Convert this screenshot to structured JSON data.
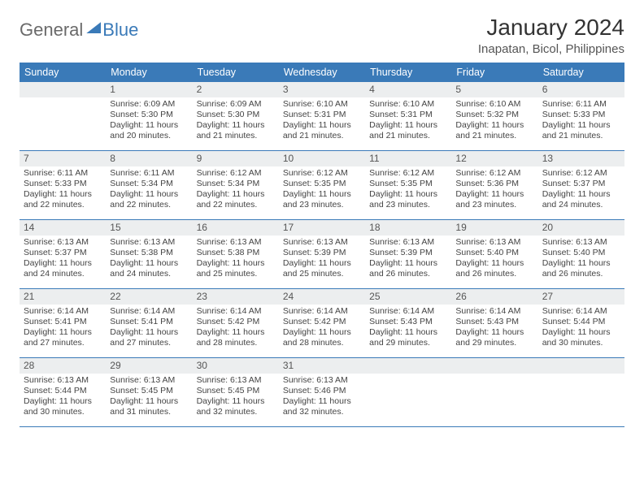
{
  "brand": {
    "part1": "General",
    "part2": "Blue"
  },
  "title": "January 2024",
  "location": "Inapatan, Bicol, Philippines",
  "colors": {
    "header_bg": "#3a7ab8",
    "header_text": "#ffffff",
    "daynum_bg": "#eceeef",
    "body_bg": "#ffffff",
    "text": "#333333",
    "secondary_text": "#555555"
  },
  "day_headers": [
    "Sunday",
    "Monday",
    "Tuesday",
    "Wednesday",
    "Thursday",
    "Friday",
    "Saturday"
  ],
  "layout": {
    "rows": 6,
    "cols": 7,
    "row_separator_color": "#3a7ab8"
  },
  "weeks": [
    [
      null,
      {
        "n": "1",
        "sunrise": "Sunrise: 6:09 AM",
        "sunset": "Sunset: 5:30 PM",
        "daylight": "Daylight: 11 hours and 20 minutes."
      },
      {
        "n": "2",
        "sunrise": "Sunrise: 6:09 AM",
        "sunset": "Sunset: 5:30 PM",
        "daylight": "Daylight: 11 hours and 21 minutes."
      },
      {
        "n": "3",
        "sunrise": "Sunrise: 6:10 AM",
        "sunset": "Sunset: 5:31 PM",
        "daylight": "Daylight: 11 hours and 21 minutes."
      },
      {
        "n": "4",
        "sunrise": "Sunrise: 6:10 AM",
        "sunset": "Sunset: 5:31 PM",
        "daylight": "Daylight: 11 hours and 21 minutes."
      },
      {
        "n": "5",
        "sunrise": "Sunrise: 6:10 AM",
        "sunset": "Sunset: 5:32 PM",
        "daylight": "Daylight: 11 hours and 21 minutes."
      },
      {
        "n": "6",
        "sunrise": "Sunrise: 6:11 AM",
        "sunset": "Sunset: 5:33 PM",
        "daylight": "Daylight: 11 hours and 21 minutes."
      }
    ],
    [
      {
        "n": "7",
        "sunrise": "Sunrise: 6:11 AM",
        "sunset": "Sunset: 5:33 PM",
        "daylight": "Daylight: 11 hours and 22 minutes."
      },
      {
        "n": "8",
        "sunrise": "Sunrise: 6:11 AM",
        "sunset": "Sunset: 5:34 PM",
        "daylight": "Daylight: 11 hours and 22 minutes."
      },
      {
        "n": "9",
        "sunrise": "Sunrise: 6:12 AM",
        "sunset": "Sunset: 5:34 PM",
        "daylight": "Daylight: 11 hours and 22 minutes."
      },
      {
        "n": "10",
        "sunrise": "Sunrise: 6:12 AM",
        "sunset": "Sunset: 5:35 PM",
        "daylight": "Daylight: 11 hours and 23 minutes."
      },
      {
        "n": "11",
        "sunrise": "Sunrise: 6:12 AM",
        "sunset": "Sunset: 5:35 PM",
        "daylight": "Daylight: 11 hours and 23 minutes."
      },
      {
        "n": "12",
        "sunrise": "Sunrise: 6:12 AM",
        "sunset": "Sunset: 5:36 PM",
        "daylight": "Daylight: 11 hours and 23 minutes."
      },
      {
        "n": "13",
        "sunrise": "Sunrise: 6:12 AM",
        "sunset": "Sunset: 5:37 PM",
        "daylight": "Daylight: 11 hours and 24 minutes."
      }
    ],
    [
      {
        "n": "14",
        "sunrise": "Sunrise: 6:13 AM",
        "sunset": "Sunset: 5:37 PM",
        "daylight": "Daylight: 11 hours and 24 minutes."
      },
      {
        "n": "15",
        "sunrise": "Sunrise: 6:13 AM",
        "sunset": "Sunset: 5:38 PM",
        "daylight": "Daylight: 11 hours and 24 minutes."
      },
      {
        "n": "16",
        "sunrise": "Sunrise: 6:13 AM",
        "sunset": "Sunset: 5:38 PM",
        "daylight": "Daylight: 11 hours and 25 minutes."
      },
      {
        "n": "17",
        "sunrise": "Sunrise: 6:13 AM",
        "sunset": "Sunset: 5:39 PM",
        "daylight": "Daylight: 11 hours and 25 minutes."
      },
      {
        "n": "18",
        "sunrise": "Sunrise: 6:13 AM",
        "sunset": "Sunset: 5:39 PM",
        "daylight": "Daylight: 11 hours and 26 minutes."
      },
      {
        "n": "19",
        "sunrise": "Sunrise: 6:13 AM",
        "sunset": "Sunset: 5:40 PM",
        "daylight": "Daylight: 11 hours and 26 minutes."
      },
      {
        "n": "20",
        "sunrise": "Sunrise: 6:13 AM",
        "sunset": "Sunset: 5:40 PM",
        "daylight": "Daylight: 11 hours and 26 minutes."
      }
    ],
    [
      {
        "n": "21",
        "sunrise": "Sunrise: 6:14 AM",
        "sunset": "Sunset: 5:41 PM",
        "daylight": "Daylight: 11 hours and 27 minutes."
      },
      {
        "n": "22",
        "sunrise": "Sunrise: 6:14 AM",
        "sunset": "Sunset: 5:41 PM",
        "daylight": "Daylight: 11 hours and 27 minutes."
      },
      {
        "n": "23",
        "sunrise": "Sunrise: 6:14 AM",
        "sunset": "Sunset: 5:42 PM",
        "daylight": "Daylight: 11 hours and 28 minutes."
      },
      {
        "n": "24",
        "sunrise": "Sunrise: 6:14 AM",
        "sunset": "Sunset: 5:42 PM",
        "daylight": "Daylight: 11 hours and 28 minutes."
      },
      {
        "n": "25",
        "sunrise": "Sunrise: 6:14 AM",
        "sunset": "Sunset: 5:43 PM",
        "daylight": "Daylight: 11 hours and 29 minutes."
      },
      {
        "n": "26",
        "sunrise": "Sunrise: 6:14 AM",
        "sunset": "Sunset: 5:43 PM",
        "daylight": "Daylight: 11 hours and 29 minutes."
      },
      {
        "n": "27",
        "sunrise": "Sunrise: 6:14 AM",
        "sunset": "Sunset: 5:44 PM",
        "daylight": "Daylight: 11 hours and 30 minutes."
      }
    ],
    [
      {
        "n": "28",
        "sunrise": "Sunrise: 6:13 AM",
        "sunset": "Sunset: 5:44 PM",
        "daylight": "Daylight: 11 hours and 30 minutes."
      },
      {
        "n": "29",
        "sunrise": "Sunrise: 6:13 AM",
        "sunset": "Sunset: 5:45 PM",
        "daylight": "Daylight: 11 hours and 31 minutes."
      },
      {
        "n": "30",
        "sunrise": "Sunrise: 6:13 AM",
        "sunset": "Sunset: 5:45 PM",
        "daylight": "Daylight: 11 hours and 32 minutes."
      },
      {
        "n": "31",
        "sunrise": "Sunrise: 6:13 AM",
        "sunset": "Sunset: 5:46 PM",
        "daylight": "Daylight: 11 hours and 32 minutes."
      },
      null,
      null,
      null
    ]
  ]
}
